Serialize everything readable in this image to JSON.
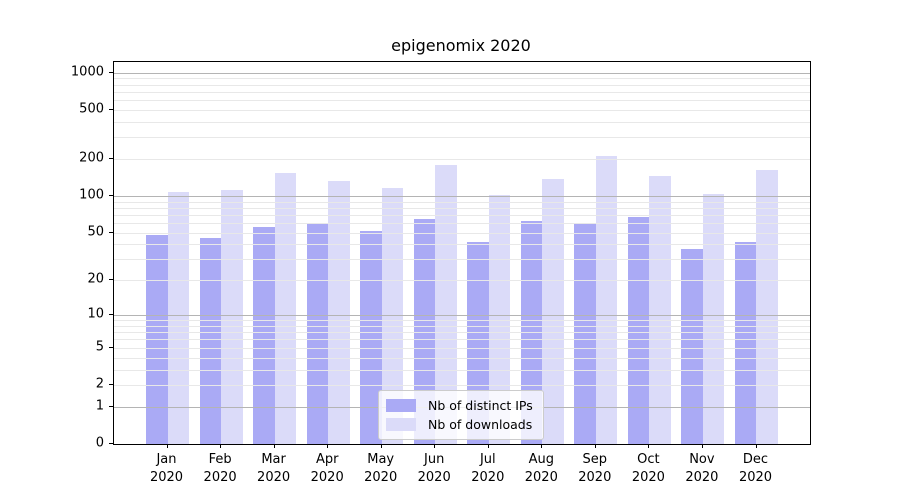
{
  "title": "epigenomix 2020",
  "colors": {
    "distinct_ips_bar": "#aaaaf5",
    "downloads_bar": "#dbdbf9",
    "grid_major": "#b4b4b4",
    "grid_minor": "#e8e8e8",
    "axis": "#000000",
    "legend_border": "#cccccc",
    "background": "#ffffff"
  },
  "legend": {
    "items": [
      {
        "label": "Nb of distinct IPs",
        "color_key": "distinct_ips_bar"
      },
      {
        "label": "Nb of downloads",
        "color_key": "downloads_bar"
      }
    ]
  },
  "x_axis": {
    "year_line": "2020",
    "months": [
      "Jan",
      "Feb",
      "Mar",
      "Apr",
      "May",
      "Jun",
      "Jul",
      "Aug",
      "Sep",
      "Oct",
      "Nov",
      "Dec"
    ]
  },
  "y_axis": {
    "tick_labels": [
      "0",
      "1",
      "2",
      "5",
      "10",
      "20",
      "50",
      "100",
      "200",
      "500",
      "1000"
    ],
    "tick_values": [
      0,
      1,
      2,
      5,
      10,
      20,
      50,
      100,
      200,
      500,
      1000
    ],
    "grid_major_values": [
      1,
      10,
      100,
      1000
    ],
    "grid_minor_values": [
      2,
      3,
      4,
      5,
      6,
      7,
      8,
      9,
      20,
      30,
      40,
      50,
      60,
      70,
      80,
      90,
      200,
      300,
      400,
      500,
      600,
      700,
      800,
      900
    ]
  },
  "chart_data": {
    "type": "bar",
    "title": "epigenomix 2020",
    "categories": [
      "Jan 2020",
      "Feb 2020",
      "Mar 2020",
      "Apr 2020",
      "May 2020",
      "Jun 2020",
      "Jul 2020",
      "Aug 2020",
      "Sep 2020",
      "Oct 2020",
      "Nov 2020",
      "Dec 2020"
    ],
    "series": [
      {
        "name": "Nb of distinct IPs",
        "values": [
          48,
          45,
          56,
          60,
          52,
          65,
          42,
          62,
          59,
          67,
          37,
          42
        ]
      },
      {
        "name": "Nb of downloads",
        "values": [
          108,
          112,
          153,
          133,
          117,
          180,
          102,
          138,
          210,
          146,
          104,
          162
        ]
      }
    ],
    "xlabel": "",
    "ylabel": "",
    "yscale": "log1p",
    "ylim": [
      0,
      1220
    ],
    "yticks": [
      0,
      1,
      2,
      5,
      10,
      20,
      50,
      100,
      200,
      500,
      1000
    ],
    "grid": true,
    "legend_position": "lower-center"
  }
}
